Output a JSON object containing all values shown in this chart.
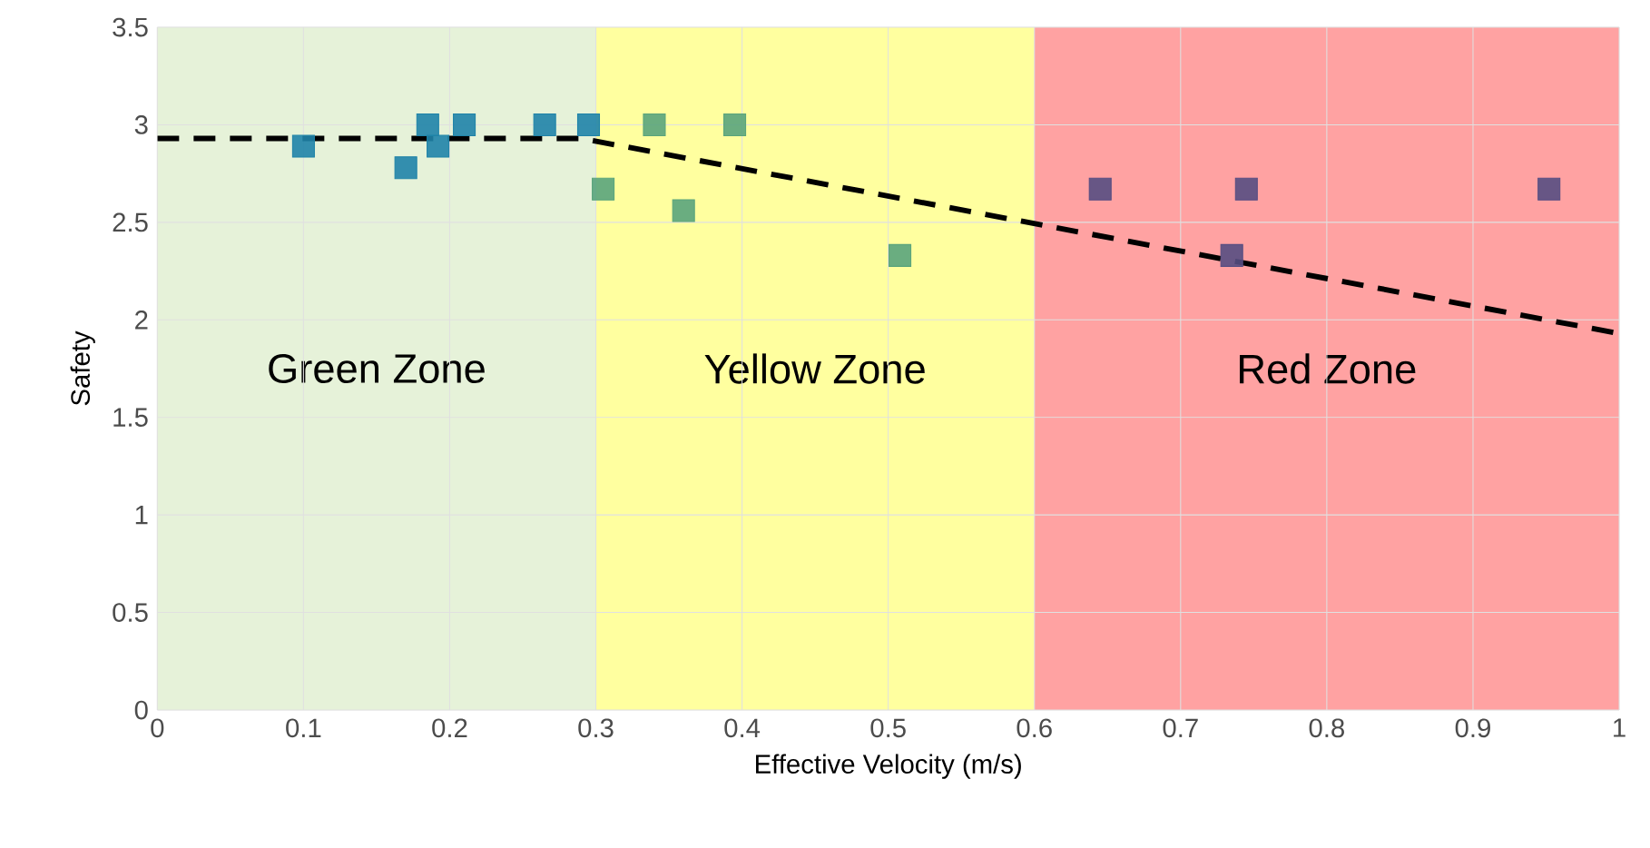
{
  "chart_data": {
    "type": "scatter",
    "xlabel": "Effective Velocity (m/s)",
    "ylabel": "Safety",
    "xlim": [
      0,
      1
    ],
    "ylim": [
      0,
      3.5
    ],
    "xticks": [
      0,
      0.1,
      0.2,
      0.3,
      0.4,
      0.5,
      0.6,
      0.7,
      0.8,
      0.9,
      1
    ],
    "yticks": [
      0,
      0.5,
      1,
      1.5,
      2,
      2.5,
      3,
      3.5
    ],
    "grid": true,
    "marker": "square",
    "bands": [
      {
        "axis": "x",
        "from": 0,
        "to": 0.3,
        "label": "Green Zone",
        "color": "#e6f2d9"
      },
      {
        "axis": "x",
        "from": 0.3,
        "to": 0.6,
        "label": "Yellow Zone",
        "color": "#ffff9f"
      },
      {
        "axis": "x",
        "from": 0.6,
        "to": 1,
        "label": "Red Zone",
        "color": "#ffa2a2"
      }
    ],
    "series": [
      {
        "color": "#1f83a8",
        "x": [
          0.1,
          0.17,
          0.185,
          0.192,
          0.21,
          0.265,
          0.295
        ],
        "values": [
          2.89,
          2.78,
          3.0,
          2.89,
          3.0,
          3.0,
          3.0
        ]
      },
      {
        "color": "#5aa47c",
        "x": [
          0.305,
          0.34,
          0.36,
          0.395,
          0.508
        ],
        "values": [
          2.67,
          3.0,
          2.56,
          3.0,
          2.33
        ]
      },
      {
        "color": "#574e82",
        "x": [
          0.645,
          0.735,
          0.745,
          0.952
        ],
        "values": [
          2.67,
          2.33,
          2.67,
          2.67
        ]
      },
      {
        "type": "line",
        "color": "#000000",
        "line_style": "dashed",
        "marker": "none",
        "x": [
          0,
          0.29,
          1
        ],
        "values": [
          2.93,
          2.93,
          1.93
        ]
      }
    ]
  }
}
